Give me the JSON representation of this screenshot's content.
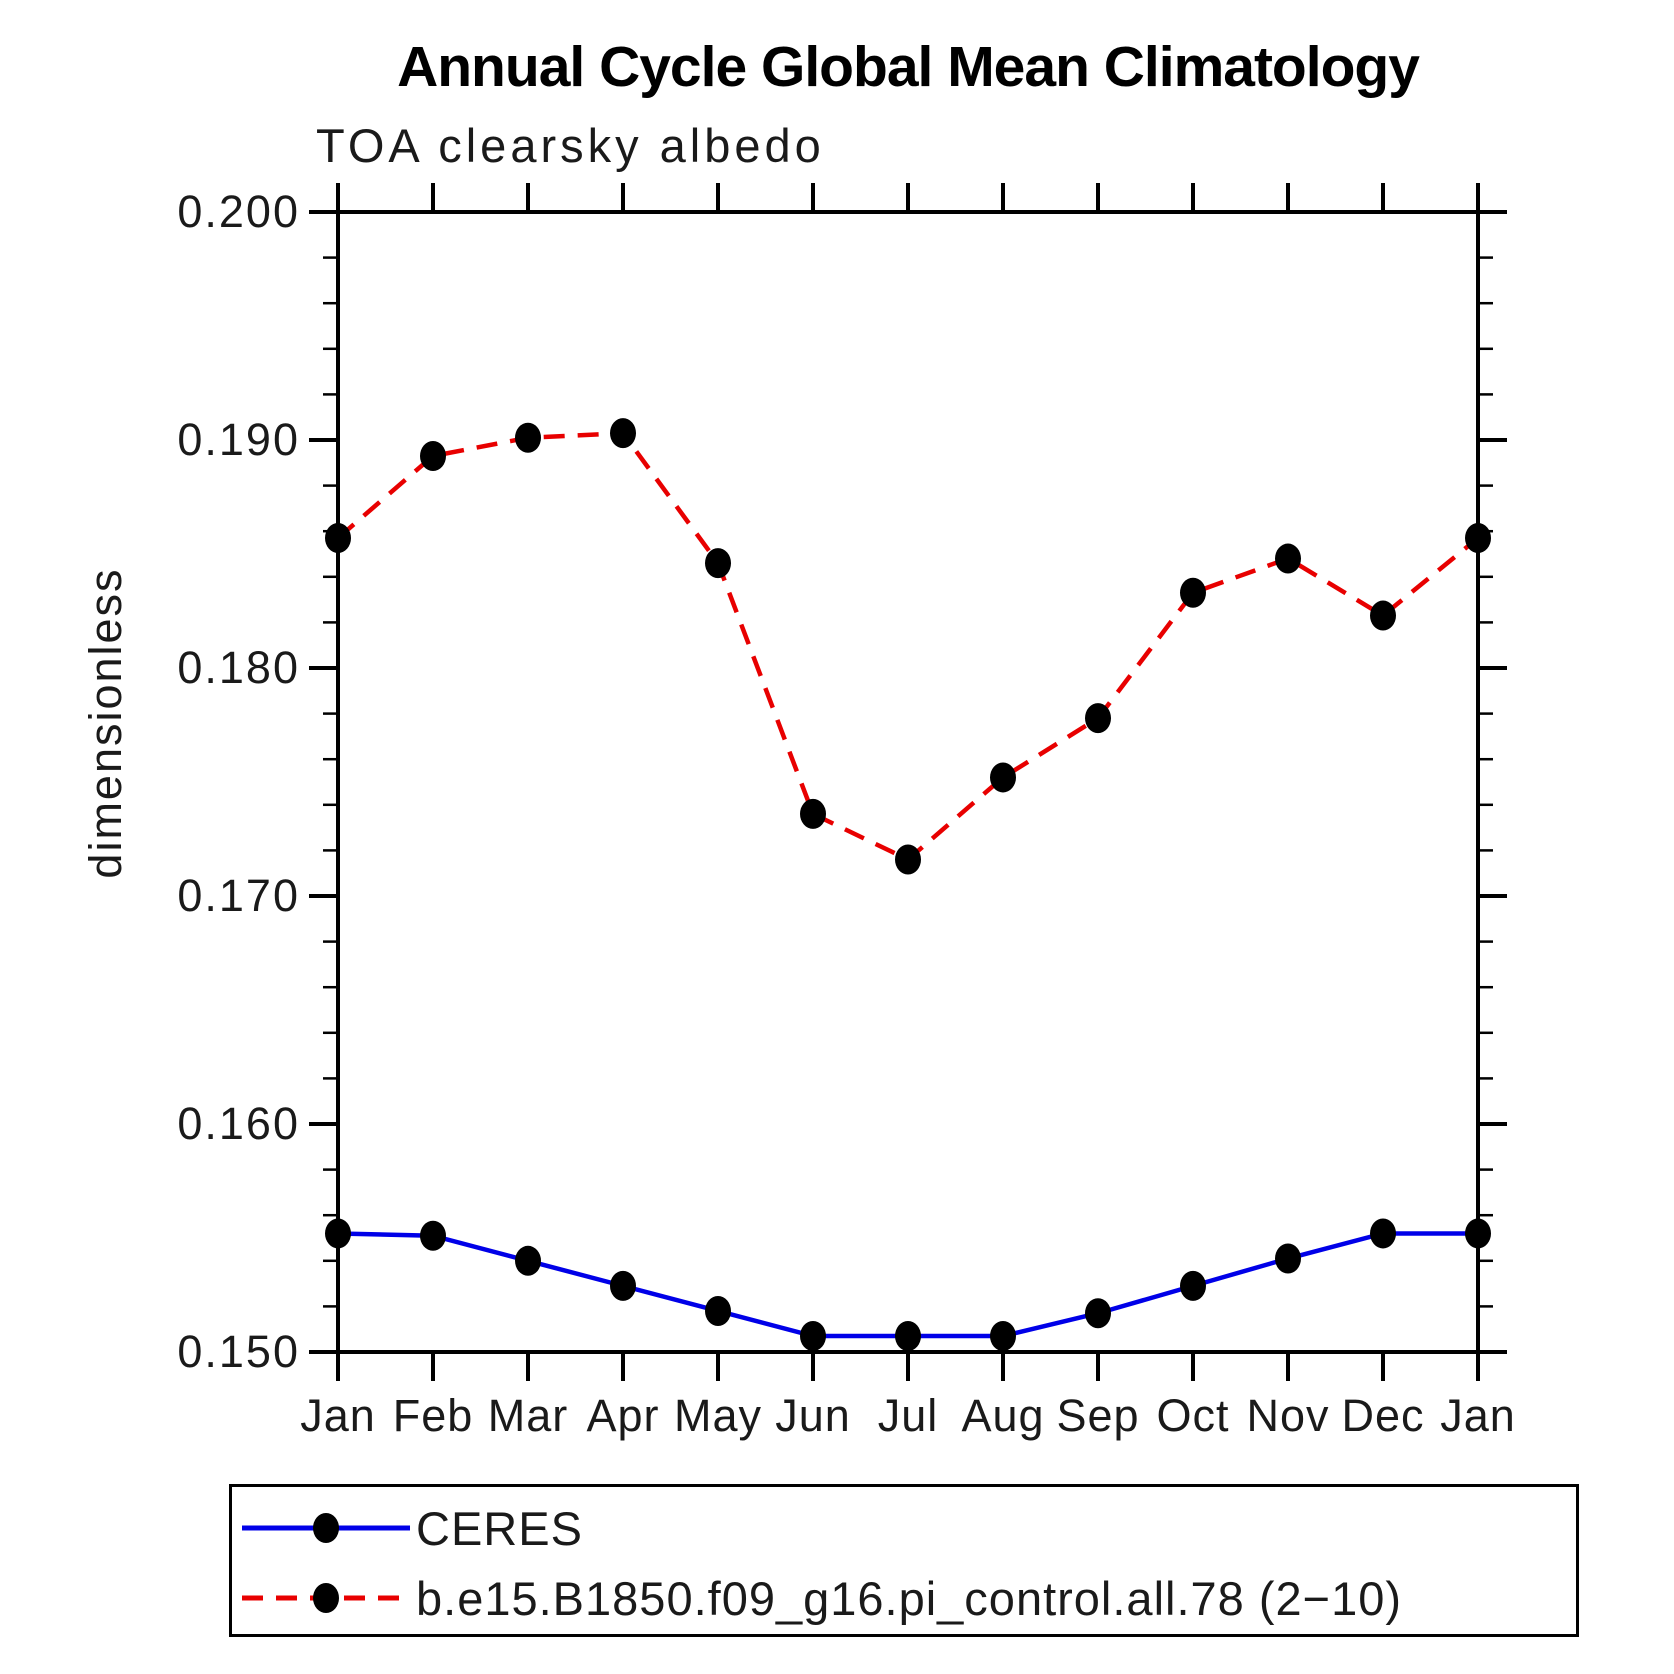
{
  "title": "Annual Cycle Global Mean Climatology",
  "subtitle": "TOA clearsky albedo",
  "y_axis": {
    "label": "dimensionless",
    "min": 0.15,
    "max": 0.2,
    "major_step": 0.01,
    "minor_step": 0.002,
    "tick_labels": [
      "0.200",
      "0.190",
      "0.180",
      "0.170",
      "0.160",
      "0.150"
    ]
  },
  "x_axis": {
    "labels": [
      "Jan",
      "Feb",
      "Mar",
      "Apr",
      "May",
      "Jun",
      "Jul",
      "Aug",
      "Sep",
      "Oct",
      "Nov",
      "Dec",
      "Jan"
    ]
  },
  "legend": {
    "entries": [
      {
        "label": "CERES",
        "color": "#0000e8",
        "line_style": "solid",
        "marker": "filled-circle"
      },
      {
        "label": "b.e15.B1850.f09_g16.pi_control.all.78 (2−10)",
        "color": "#e80000",
        "line_style": "dashed",
        "marker": "filled-circle"
      }
    ]
  },
  "chart_data": {
    "type": "line",
    "title": "Annual Cycle Global Mean Climatology",
    "subtitle": "TOA clearsky albedo",
    "ylabel": "dimensionless",
    "ylim": [
      0.15,
      0.2
    ],
    "grid": false,
    "legend_position": "bottom",
    "categories": [
      "Jan",
      "Feb",
      "Mar",
      "Apr",
      "May",
      "Jun",
      "Jul",
      "Aug",
      "Sep",
      "Oct",
      "Nov",
      "Dec",
      "Jan"
    ],
    "series": [
      {
        "name": "CERES",
        "color": "#0000e8",
        "line_style": "solid",
        "marker": "filled-circle",
        "values": [
          0.1552,
          0.1551,
          0.154,
          0.1529,
          0.1518,
          0.1507,
          0.1507,
          0.1507,
          0.1517,
          0.1529,
          0.1541,
          0.1552,
          0.1552
        ]
      },
      {
        "name": "b.e15.B1850.f09_g16.pi_control.all.78 (2−10)",
        "color": "#e80000",
        "line_style": "dashed",
        "marker": "filled-circle",
        "values": [
          0.1857,
          0.1893,
          0.1901,
          0.1903,
          0.1846,
          0.1736,
          0.1716,
          0.1752,
          0.1778,
          0.1833,
          0.1848,
          0.1823,
          0.1857
        ]
      }
    ]
  }
}
